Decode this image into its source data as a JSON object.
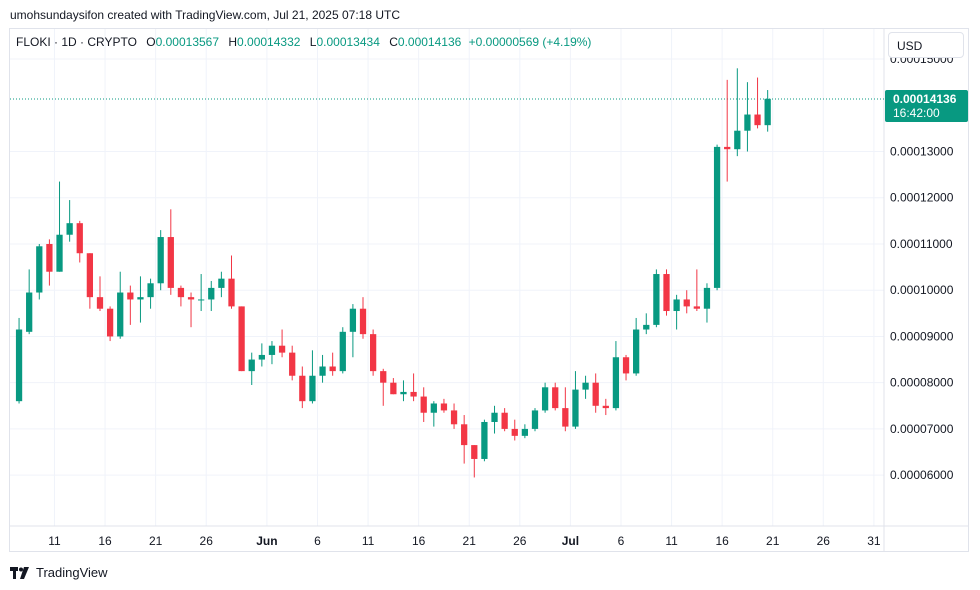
{
  "header": {
    "credit": "umohsundaysifon created with TradingView.com, Jul 21, 2025 07:18 UTC"
  },
  "legend": {
    "symbol": "FLOKI · 1D · CRYPTO",
    "o_label": "O",
    "o": "0.00013567",
    "h_label": "H",
    "h": "0.00014332",
    "l_label": "L",
    "l": "0.00013434",
    "c_label": "C",
    "c": "0.00014136",
    "change": "+0.00000569 (+4.19%)"
  },
  "currency_button": "USD",
  "price_tag": {
    "price": "0.00014136",
    "countdown": "16:42:00"
  },
  "footer": {
    "brand": "TradingView"
  },
  "colors": {
    "up": "#089981",
    "down": "#f23645",
    "grid": "#f0f3fa",
    "axis_text": "#131722"
  },
  "chart_data": {
    "type": "candlestick",
    "title": "",
    "xlabel": "",
    "ylabel": "",
    "ylim": [
      4.9e-05,
      0.0001565
    ],
    "grid": true,
    "yticks": [
      {
        "v": 0.00015,
        "label": "0.00015000"
      },
      {
        "v": 0.00013,
        "label": "0.00013000"
      },
      {
        "v": 0.00012,
        "label": "0.00012000"
      },
      {
        "v": 0.00011,
        "label": "0.00011000"
      },
      {
        "v": 0.0001,
        "label": "0.00010000"
      },
      {
        "v": 9e-05,
        "label": "0.00009000"
      },
      {
        "v": 8e-05,
        "label": "0.00008000"
      },
      {
        "v": 7e-05,
        "label": "0.00007000"
      },
      {
        "v": 6e-05,
        "label": "0.00006000"
      }
    ],
    "xticks": [
      {
        "d": "2025-05-11",
        "label": "11"
      },
      {
        "d": "2025-05-16",
        "label": "16"
      },
      {
        "d": "2025-05-21",
        "label": "21"
      },
      {
        "d": "2025-05-26",
        "label": "26"
      },
      {
        "d": "2025-06-01",
        "label": "Jun"
      },
      {
        "d": "2025-06-06",
        "label": "6"
      },
      {
        "d": "2025-06-11",
        "label": "11"
      },
      {
        "d": "2025-06-16",
        "label": "16"
      },
      {
        "d": "2025-06-21",
        "label": "21"
      },
      {
        "d": "2025-06-26",
        "label": "26"
      },
      {
        "d": "2025-07-01",
        "label": "Jul"
      },
      {
        "d": "2025-07-06",
        "label": "6"
      },
      {
        "d": "2025-07-11",
        "label": "11"
      },
      {
        "d": "2025-07-16",
        "label": "16"
      },
      {
        "d": "2025-07-21",
        "label": "21"
      },
      {
        "d": "2025-07-26",
        "label": "26"
      },
      {
        "d": "2025-07-31",
        "label": "31"
      }
    ],
    "xlim": [
      "2025-05-07",
      "2025-08-01"
    ],
    "last_price": 0.00014136,
    "candles": [
      {
        "d": "2025-05-07",
        "o": 7.6e-05,
        "h": 9.4e-05,
        "l": 7.55e-05,
        "c": 9.15e-05
      },
      {
        "d": "2025-05-08",
        "o": 9.1e-05,
        "h": 0.0001045,
        "l": 9.05e-05,
        "c": 9.95e-05
      },
      {
        "d": "2025-05-09",
        "o": 9.95e-05,
        "h": 0.00011,
        "l": 9.8e-05,
        "c": 0.0001095
      },
      {
        "d": "2025-05-10",
        "o": 0.00011,
        "h": 0.000111,
        "l": 0.000101,
        "c": 0.000104
      },
      {
        "d": "2025-05-11",
        "o": 0.000104,
        "h": 0.0001235,
        "l": 0.000104,
        "c": 0.000112
      },
      {
        "d": "2025-05-12",
        "o": 0.000112,
        "h": 0.0001195,
        "l": 0.0001105,
        "c": 0.0001145
      },
      {
        "d": "2025-05-13",
        "o": 0.0001145,
        "h": 0.000115,
        "l": 0.000106,
        "c": 0.000108
      },
      {
        "d": "2025-05-14",
        "o": 0.000108,
        "h": 0.000108,
        "l": 9.6e-05,
        "c": 9.85e-05
      },
      {
        "d": "2025-05-15",
        "o": 9.85e-05,
        "h": 0.000103,
        "l": 9.55e-05,
        "c": 9.6e-05
      },
      {
        "d": "2025-05-16",
        "o": 9.6e-05,
        "h": 9.65e-05,
        "l": 8.9e-05,
        "c": 9e-05
      },
      {
        "d": "2025-05-17",
        "o": 9e-05,
        "h": 0.000104,
        "l": 8.95e-05,
        "c": 9.95e-05
      },
      {
        "d": "2025-05-18",
        "o": 9.95e-05,
        "h": 0.000101,
        "l": 9.25e-05,
        "c": 9.8e-05
      },
      {
        "d": "2025-05-19",
        "o": 9.8e-05,
        "h": 0.000103,
        "l": 9.3e-05,
        "c": 9.85e-05
      },
      {
        "d": "2025-05-20",
        "o": 9.85e-05,
        "h": 0.0001025,
        "l": 9.6e-05,
        "c": 0.0001015
      },
      {
        "d": "2025-05-21",
        "o": 0.0001015,
        "h": 0.000113,
        "l": 0.0001,
        "c": 0.0001115
      },
      {
        "d": "2025-05-22",
        "o": 0.0001115,
        "h": 0.0001175,
        "l": 9.9e-05,
        "c": 0.0001005
      },
      {
        "d": "2025-05-23",
        "o": 0.0001005,
        "h": 0.000101,
        "l": 9.65e-05,
        "c": 9.85e-05
      },
      {
        "d": "2025-05-24",
        "o": 9.85e-05,
        "h": 9.95e-05,
        "l": 9.2e-05,
        "c": 9.8e-05
      },
      {
        "d": "2025-05-25",
        "o": 9.8e-05,
        "h": 0.0001035,
        "l": 9.55e-05,
        "c": 9.8e-05
      },
      {
        "d": "2025-05-26",
        "o": 9.8e-05,
        "h": 0.000102,
        "l": 9.55e-05,
        "c": 0.0001005
      },
      {
        "d": "2025-05-27",
        "o": 0.0001005,
        "h": 0.000104,
        "l": 9.85e-05,
        "c": 0.0001025
      },
      {
        "d": "2025-05-28",
        "o": 0.0001025,
        "h": 0.0001075,
        "l": 9.6e-05,
        "c": 9.65e-05
      },
      {
        "d": "2025-05-29",
        "o": 9.65e-05,
        "h": 9.65e-05,
        "l": 8.25e-05,
        "c": 8.25e-05
      },
      {
        "d": "2025-05-30",
        "o": 8.25e-05,
        "h": 8.65e-05,
        "l": 7.95e-05,
        "c": 8.5e-05
      },
      {
        "d": "2025-05-31",
        "o": 8.5e-05,
        "h": 8.85e-05,
        "l": 8.35e-05,
        "c": 8.6e-05
      },
      {
        "d": "2025-06-01",
        "o": 8.6e-05,
        "h": 8.9e-05,
        "l": 8.4e-05,
        "c": 8.8e-05
      },
      {
        "d": "2025-06-02",
        "o": 8.8e-05,
        "h": 9.15e-05,
        "l": 8.55e-05,
        "c": 8.65e-05
      },
      {
        "d": "2025-06-03",
        "o": 8.65e-05,
        "h": 8.8e-05,
        "l": 8.05e-05,
        "c": 8.15e-05
      },
      {
        "d": "2025-06-04",
        "o": 8.15e-05,
        "h": 8.35e-05,
        "l": 7.45e-05,
        "c": 7.6e-05
      },
      {
        "d": "2025-06-05",
        "o": 7.6e-05,
        "h": 8.7e-05,
        "l": 7.55e-05,
        "c": 8.15e-05
      },
      {
        "d": "2025-06-06",
        "o": 8.15e-05,
        "h": 8.6e-05,
        "l": 8e-05,
        "c": 8.35e-05
      },
      {
        "d": "2025-06-07",
        "o": 8.35e-05,
        "h": 8.65e-05,
        "l": 8.15e-05,
        "c": 8.25e-05
      },
      {
        "d": "2025-06-08",
        "o": 8.25e-05,
        "h": 9.2e-05,
        "l": 8.2e-05,
        "c": 9.1e-05
      },
      {
        "d": "2025-06-09",
        "o": 9.1e-05,
        "h": 9.7e-05,
        "l": 8.55e-05,
        "c": 9.6e-05
      },
      {
        "d": "2025-06-10",
        "o": 9.6e-05,
        "h": 9.85e-05,
        "l": 8.95e-05,
        "c": 9.05e-05
      },
      {
        "d": "2025-06-11",
        "o": 9.05e-05,
        "h": 9.15e-05,
        "l": 8.15e-05,
        "c": 8.25e-05
      },
      {
        "d": "2025-06-12",
        "o": 8.25e-05,
        "h": 8.3e-05,
        "l": 7.5e-05,
        "c": 8e-05
      },
      {
        "d": "2025-06-13",
        "o": 8e-05,
        "h": 8.1e-05,
        "l": 7.75e-05,
        "c": 7.75e-05
      },
      {
        "d": "2025-06-14",
        "o": 7.75e-05,
        "h": 8.05e-05,
        "l": 7.6e-05,
        "c": 7.8e-05
      },
      {
        "d": "2025-06-15",
        "o": 7.8e-05,
        "h": 8.2e-05,
        "l": 7.6e-05,
        "c": 7.7e-05
      },
      {
        "d": "2025-06-16",
        "o": 7.7e-05,
        "h": 7.9e-05,
        "l": 7.15e-05,
        "c": 7.35e-05
      },
      {
        "d": "2025-06-17",
        "o": 7.35e-05,
        "h": 7.6e-05,
        "l": 7.05e-05,
        "c": 7.55e-05
      },
      {
        "d": "2025-06-18",
        "o": 7.55e-05,
        "h": 7.65e-05,
        "l": 7.35e-05,
        "c": 7.4e-05
      },
      {
        "d": "2025-06-19",
        "o": 7.4e-05,
        "h": 7.55e-05,
        "l": 7e-05,
        "c": 7.1e-05
      },
      {
        "d": "2025-06-20",
        "o": 7.1e-05,
        "h": 7.3e-05,
        "l": 6.25e-05,
        "c": 6.65e-05
      },
      {
        "d": "2025-06-21",
        "o": 6.65e-05,
        "h": 6.65e-05,
        "l": 5.95e-05,
        "c": 6.35e-05
      },
      {
        "d": "2025-06-22",
        "o": 6.35e-05,
        "h": 7.2e-05,
        "l": 6.3e-05,
        "c": 7.15e-05
      },
      {
        "d": "2025-06-23",
        "o": 7.15e-05,
        "h": 7.5e-05,
        "l": 6.9e-05,
        "c": 7.35e-05
      },
      {
        "d": "2025-06-24",
        "o": 7.35e-05,
        "h": 7.45e-05,
        "l": 6.95e-05,
        "c": 7e-05
      },
      {
        "d": "2025-06-25",
        "o": 7e-05,
        "h": 7.2e-05,
        "l": 6.75e-05,
        "c": 6.85e-05
      },
      {
        "d": "2025-06-26",
        "o": 6.85e-05,
        "h": 7.1e-05,
        "l": 6.8e-05,
        "c": 7e-05
      },
      {
        "d": "2025-06-27",
        "o": 7e-05,
        "h": 7.45e-05,
        "l": 6.95e-05,
        "c": 7.4e-05
      },
      {
        "d": "2025-06-28",
        "o": 7.4e-05,
        "h": 8e-05,
        "l": 7.35e-05,
        "c": 7.9e-05
      },
      {
        "d": "2025-06-29",
        "o": 7.9e-05,
        "h": 8e-05,
        "l": 7.4e-05,
        "c": 7.45e-05
      },
      {
        "d": "2025-06-30",
        "o": 7.45e-05,
        "h": 7.9e-05,
        "l": 6.95e-05,
        "c": 7.05e-05
      },
      {
        "d": "2025-07-01",
        "o": 7.05e-05,
        "h": 8.25e-05,
        "l": 7e-05,
        "c": 7.85e-05
      },
      {
        "d": "2025-07-02",
        "o": 7.85e-05,
        "h": 8.15e-05,
        "l": 7.65e-05,
        "c": 8e-05
      },
      {
        "d": "2025-07-03",
        "o": 8e-05,
        "h": 8.2e-05,
        "l": 7.35e-05,
        "c": 7.5e-05
      },
      {
        "d": "2025-07-04",
        "o": 7.5e-05,
        "h": 7.65e-05,
        "l": 7.3e-05,
        "c": 7.45e-05
      },
      {
        "d": "2025-07-05",
        "o": 7.45e-05,
        "h": 8.9e-05,
        "l": 7.4e-05,
        "c": 8.55e-05
      },
      {
        "d": "2025-07-06",
        "o": 8.55e-05,
        "h": 8.6e-05,
        "l": 8.05e-05,
        "c": 8.2e-05
      },
      {
        "d": "2025-07-07",
        "o": 8.2e-05,
        "h": 9.4e-05,
        "l": 8.15e-05,
        "c": 9.15e-05
      },
      {
        "d": "2025-07-08",
        "o": 9.15e-05,
        "h": 9.5e-05,
        "l": 9.05e-05,
        "c": 9.25e-05
      },
      {
        "d": "2025-07-09",
        "o": 9.25e-05,
        "h": 0.0001045,
        "l": 9.2e-05,
        "c": 0.0001035
      },
      {
        "d": "2025-07-10",
        "o": 0.0001035,
        "h": 0.0001045,
        "l": 9.45e-05,
        "c": 9.55e-05
      },
      {
        "d": "2025-07-11",
        "o": 9.55e-05,
        "h": 9.9e-05,
        "l": 9.15e-05,
        "c": 9.8e-05
      },
      {
        "d": "2025-07-12",
        "o": 9.8e-05,
        "h": 0.0001,
        "l": 9.5e-05,
        "c": 9.65e-05
      },
      {
        "d": "2025-07-13",
        "o": 9.65e-05,
        "h": 0.0001045,
        "l": 9.55e-05,
        "c": 9.6e-05
      },
      {
        "d": "2025-07-14",
        "o": 9.6e-05,
        "h": 0.0001015,
        "l": 9.3e-05,
        "c": 0.0001005
      },
      {
        "d": "2025-07-15",
        "o": 0.0001005,
        "h": 0.0001315,
        "l": 0.0001,
        "c": 0.000131
      },
      {
        "d": "2025-07-16",
        "o": 0.000131,
        "h": 0.0001455,
        "l": 0.0001235,
        "c": 0.0001305
      },
      {
        "d": "2025-07-17",
        "o": 0.0001305,
        "h": 0.000148,
        "l": 0.000129,
        "c": 0.0001345
      },
      {
        "d": "2025-07-18",
        "o": 0.0001345,
        "h": 0.000145,
        "l": 0.00013,
        "c": 0.000138
      },
      {
        "d": "2025-07-19",
        "o": 0.000138,
        "h": 0.000146,
        "l": 0.000135,
        "c": 0.0001357
      },
      {
        "d": "2025-07-20",
        "o": 0.0001357,
        "h": 0.0001433,
        "l": 0.0001343,
        "c": 0.0001414
      }
    ]
  }
}
